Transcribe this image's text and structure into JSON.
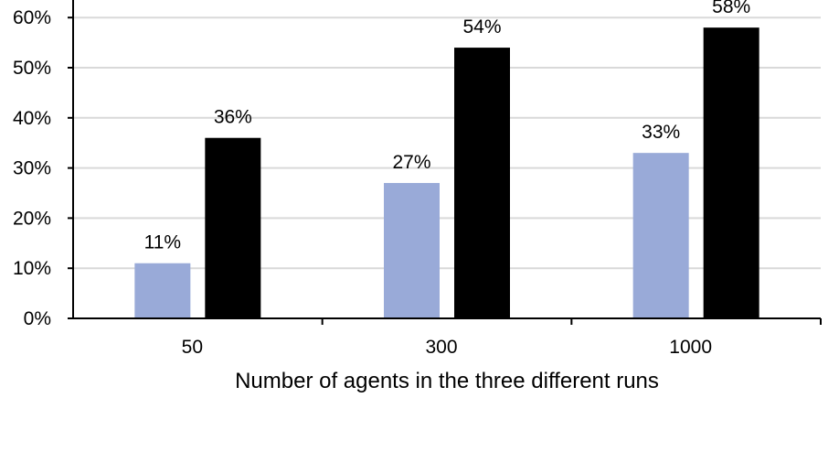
{
  "chart_data": {
    "type": "bar",
    "categories": [
      "50",
      "300",
      "1000"
    ],
    "series": [
      {
        "values": [
          11,
          27,
          33
        ],
        "color": "#99aad8",
        "labels": [
          "11%",
          "27%",
          "33%"
        ]
      },
      {
        "values": [
          36,
          54,
          58
        ],
        "color": "#000000",
        "labels": [
          "36%",
          "54%",
          "58%"
        ]
      }
    ],
    "xlabel": "Number of agents in the three different runs",
    "ylim": [
      0,
      60
    ],
    "yticks": [
      "0%",
      "10%",
      "20%",
      "30%",
      "40%",
      "50%",
      "60%"
    ],
    "grid": true
  }
}
